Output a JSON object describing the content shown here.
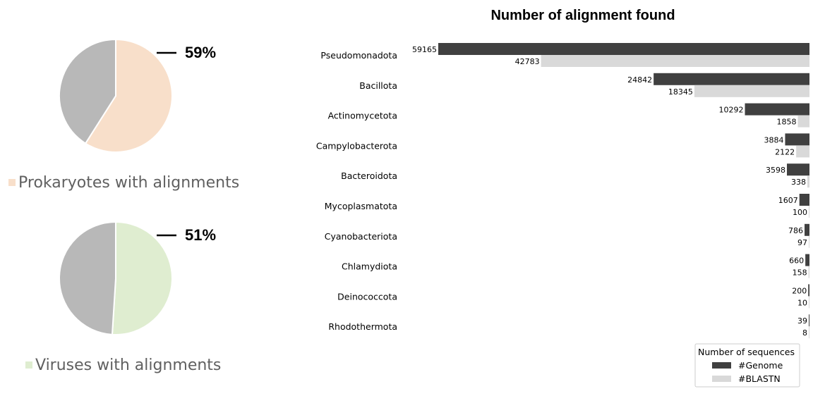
{
  "colors": {
    "prokaryote_slice": "#f8dfca",
    "virus_slice": "#dfedd0",
    "rest_slice": "#b8b8b8",
    "genome_bar": "#404040",
    "blastn_bar": "#d9d9d9"
  },
  "chart_data": [
    {
      "type": "pie",
      "slices": [
        {
          "label": "Prokaryotes with alignments",
          "value": 59
        },
        {
          "label": "",
          "value": 41
        }
      ],
      "percent_label": "59%",
      "legend": "Prokaryotes with alignments"
    },
    {
      "type": "pie",
      "slices": [
        {
          "label": "Viruses with alignments",
          "value": 51
        },
        {
          "label": "",
          "value": 49
        }
      ],
      "percent_label": "51%",
      "legend": "Viruses with alignments"
    },
    {
      "type": "bar",
      "orientation": "horizontal-reversed",
      "title": "Number of alignment found",
      "categories": [
        "Pseudomonadota",
        "Bacillota",
        "Actinomycetota",
        "Campylobacterota",
        "Bacteroidota",
        "Mycoplasmatota",
        "Cyanobacteriota",
        "Chlamydiota",
        "Deinococcota",
        "Rhodothermota"
      ],
      "series": [
        {
          "name": "#Genome",
          "values": [
            59165,
            24842,
            10292,
            3884,
            3598,
            1607,
            786,
            660,
            200,
            39
          ]
        },
        {
          "name": "#BLASTN",
          "values": [
            42783,
            18345,
            1858,
            2122,
            338,
            100,
            97,
            158,
            10,
            8
          ]
        }
      ],
      "xlim": [
        0,
        59165
      ],
      "legend_title": "Number of sequences",
      "legend_position": "bottom-right",
      "grid": false
    }
  ]
}
